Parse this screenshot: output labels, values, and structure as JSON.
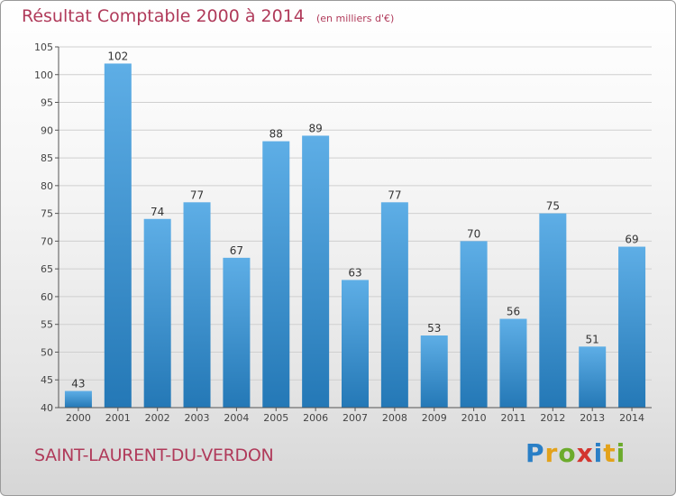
{
  "header": {
    "title": "Résultat Comptable 2000 à 2014",
    "subtitle": "(en milliers d'€)"
  },
  "footer": {
    "commune": "SAINT-LAURENT-DU-VERDON",
    "logo_letters": [
      "P",
      "r",
      "o",
      "x",
      "i",
      "t",
      "i"
    ],
    "logo_colors": [
      "#2a7fc6",
      "#e3a21a",
      "#6cab2c",
      "#d3352f",
      "#2a7fc6",
      "#e3a21a",
      "#6cab2c"
    ]
  },
  "colors": {
    "bar_top": "#5eaee6",
    "bar_bottom": "#2478b6",
    "title": "#b03a5a"
  },
  "chart_data": {
    "type": "bar",
    "title": "Résultat Comptable 2000 à 2014",
    "subtitle": "(en milliers d'€)",
    "xlabel": "",
    "ylabel": "",
    "categories": [
      "2000",
      "2001",
      "2002",
      "2003",
      "2004",
      "2005",
      "2006",
      "2007",
      "2008",
      "2009",
      "2010",
      "2011",
      "2012",
      "2013",
      "2014"
    ],
    "values": [
      43,
      102,
      74,
      77,
      67,
      88,
      89,
      63,
      77,
      53,
      70,
      56,
      75,
      51,
      69
    ],
    "ylim": [
      40,
      105
    ],
    "yticks": [
      40,
      45,
      50,
      55,
      60,
      65,
      70,
      75,
      80,
      85,
      90,
      95,
      100,
      105
    ],
    "grid": true,
    "legend": "none"
  }
}
